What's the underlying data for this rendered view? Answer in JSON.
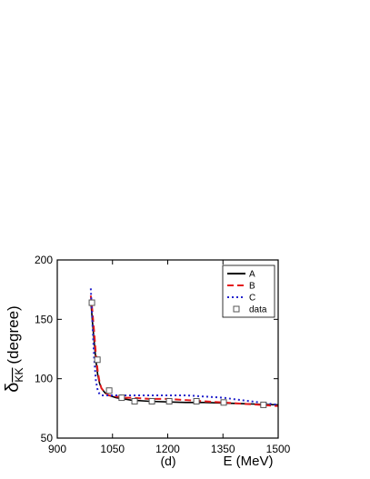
{
  "chart_data": {
    "type": "line",
    "panel_label": "(d)",
    "xlabel": "E (MeV)",
    "ylabel": {
      "symbol": "δ",
      "subscript": "KK",
      "unit": "(degree)"
    },
    "xlim": [
      900,
      1500
    ],
    "xticks": [
      900,
      1050,
      1200,
      1350,
      1500
    ],
    "ylim": [
      50,
      200
    ],
    "yticks": [
      50,
      100,
      150,
      200
    ],
    "legend": "upper right",
    "series": [
      {
        "name": "A",
        "color": "#000000",
        "style": "solid",
        "x": [
          991,
          995,
          1000,
          1005,
          1010,
          1015,
          1020,
          1030,
          1040,
          1060,
          1080,
          1100,
          1150,
          1200,
          1250,
          1300,
          1350,
          1400,
          1450,
          1500
        ],
        "values": [
          166,
          150,
          132,
          115,
          103,
          96,
          92,
          88,
          86,
          84,
          83,
          82,
          81,
          80.5,
          80,
          80,
          79.5,
          79,
          78.5,
          78
        ]
      },
      {
        "name": "B",
        "color": "#e41a1c",
        "style": "dashed",
        "x": [
          991,
          995,
          1000,
          1005,
          1010,
          1015,
          1020,
          1030,
          1040,
          1060,
          1080,
          1100,
          1150,
          1200,
          1250,
          1300,
          1350,
          1400,
          1450,
          1500
        ],
        "values": [
          170,
          158,
          140,
          120,
          106,
          97,
          92,
          88,
          86,
          85,
          84,
          84,
          83,
          83,
          82,
          81,
          80,
          79,
          78,
          77
        ]
      },
      {
        "name": "C",
        "color": "#2222cc",
        "style": "dotted",
        "x": [
          991,
          995,
          1000,
          1005,
          1010,
          1015,
          1020,
          1030,
          1040,
          1060,
          1080,
          1100,
          1150,
          1200,
          1250,
          1300,
          1350,
          1400,
          1450,
          1500
        ],
        "values": [
          176,
          150,
          118,
          98,
          90,
          87,
          86,
          86,
          86,
          86,
          86,
          86,
          86,
          86,
          86,
          85,
          84,
          82,
          80,
          78
        ]
      },
      {
        "name": "data",
        "color": "#555555",
        "style": "square",
        "x": [
          994,
          1009,
          1041,
          1075,
          1110,
          1157,
          1204,
          1278,
          1352,
          1460
        ],
        "values": [
          164,
          116,
          90,
          84,
          81,
          81,
          81,
          81,
          80,
          78
        ]
      }
    ]
  }
}
